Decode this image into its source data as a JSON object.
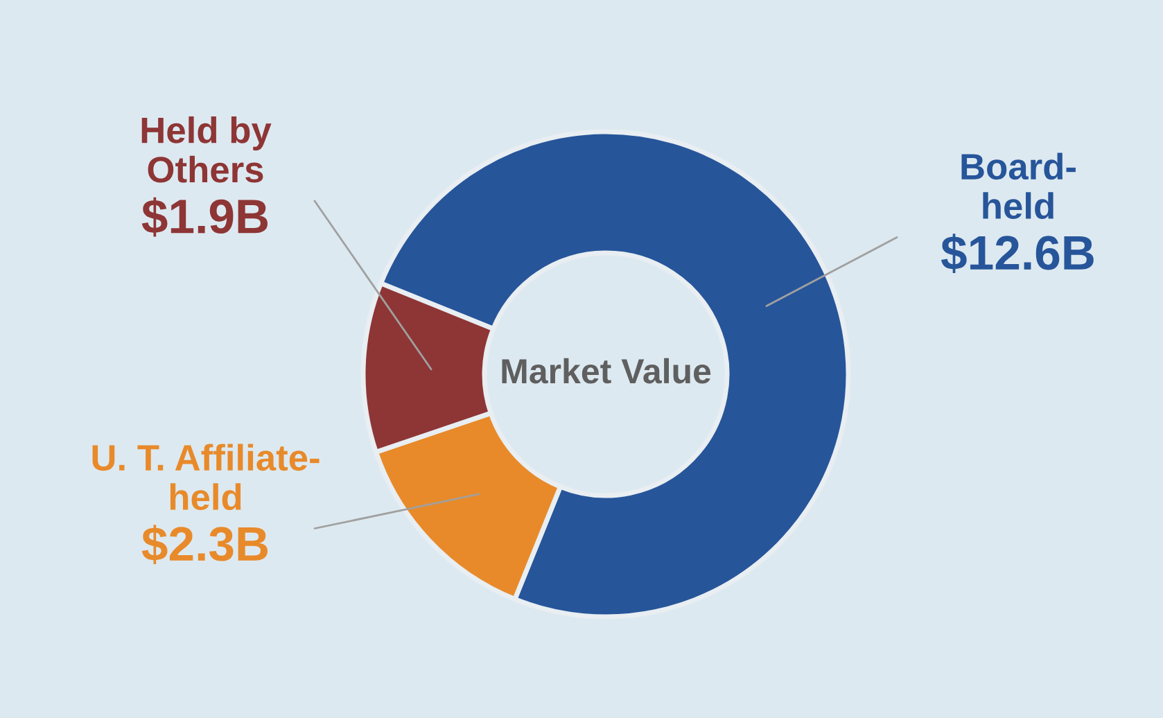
{
  "chart_data": {
    "type": "donut",
    "title": "Market Value",
    "categories": [
      "Board-\nheld",
      "U. T. Affiliate-\nheld",
      "Held by\nOthers"
    ],
    "values": [
      12.6,
      2.3,
      1.9
    ],
    "value_labels": [
      "$12.6B",
      "$2.3B",
      "$1.9B"
    ],
    "colors": [
      "#27559a",
      "#e88a2a",
      "#8e3535"
    ],
    "legend": false
  }
}
